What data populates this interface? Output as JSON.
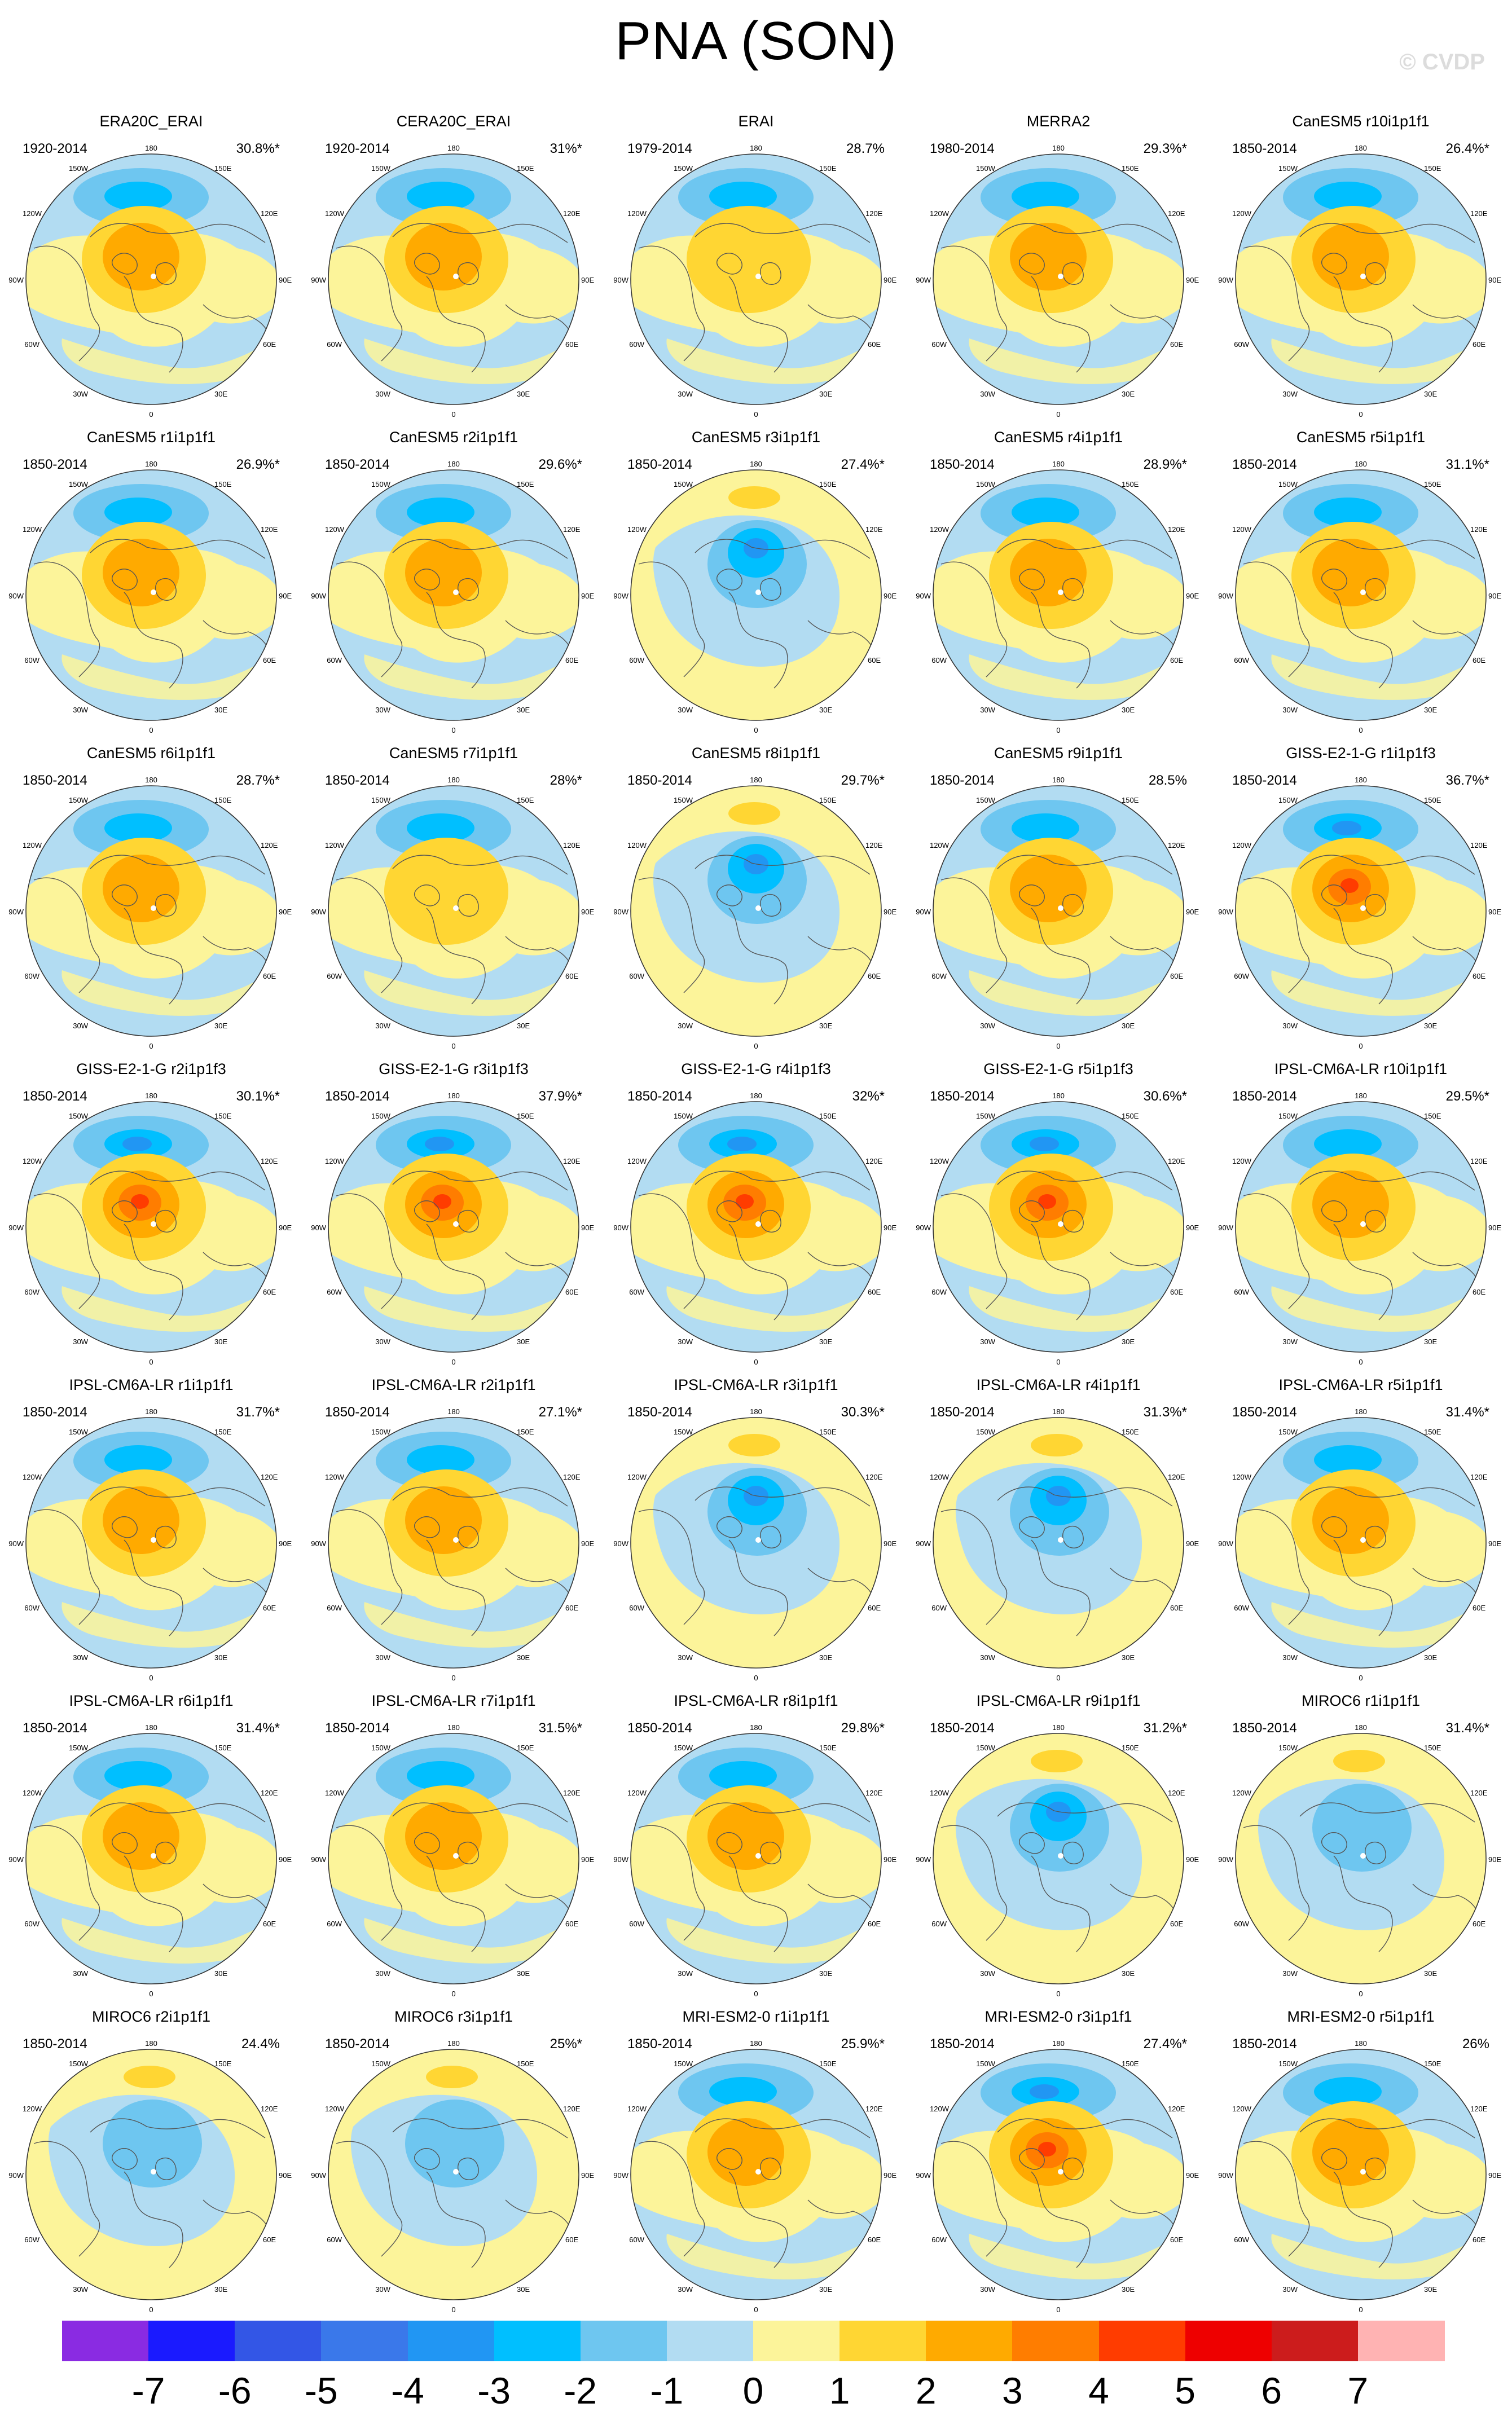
{
  "title": "PNA (SON)",
  "watermark": "© CVDP",
  "map_labels": {
    "lon_180": "180",
    "lon_150w": "150W",
    "lon_150e": "150E",
    "lon_120w": "120W",
    "lon_120e": "120E",
    "lon_90w": "90W",
    "lon_90e": "90E",
    "lon_60w": "60W",
    "lon_60e": "60E",
    "lon_30w": "30W",
    "lon_30e": "30E",
    "lon_0": "0"
  },
  "colorbar": {
    "colors": [
      "#8a2be2",
      "#1a1aff",
      "#3356e6",
      "#3a78ea",
      "#2196f3",
      "#00bfff",
      "#6ec6f0",
      "#b2dcf2",
      "#fcf49a",
      "#ffd633",
      "#ffaa00",
      "#ff7d00",
      "#ff3c00",
      "#ee0000",
      "#cc1c1c",
      "#ffb3b3"
    ],
    "labels": [
      "-7",
      "-6",
      "-5",
      "-4",
      "-3",
      "-2",
      "-1",
      "0",
      "1",
      "2",
      "3",
      "4",
      "5",
      "6",
      "7"
    ]
  },
  "panels": [
    {
      "title": "ERA20C_ERAI",
      "years": "1920-2014",
      "pct": "30.8%*",
      "pattern": "pos",
      "strength": 2
    },
    {
      "title": "CERA20C_ERAI",
      "years": "1920-2014",
      "pct": "31%*",
      "pattern": "pos",
      "strength": 2
    },
    {
      "title": "ERAI",
      "years": "1979-2014",
      "pct": "28.7%",
      "pattern": "pos",
      "strength": 1
    },
    {
      "title": "MERRA2",
      "years": "1980-2014",
      "pct": "29.3%*",
      "pattern": "pos",
      "strength": 2
    },
    {
      "title": "CanESM5 r10i1p1f1",
      "years": "1850-2014",
      "pct": "26.4%*",
      "pattern": "pos",
      "strength": 2
    },
    {
      "title": "CanESM5 r1i1p1f1",
      "years": "1850-2014",
      "pct": "26.9%*",
      "pattern": "pos",
      "strength": 2
    },
    {
      "title": "CanESM5 r2i1p1f1",
      "years": "1850-2014",
      "pct": "29.6%*",
      "pattern": "pos",
      "strength": 2
    },
    {
      "title": "CanESM5 r3i1p1f1",
      "years": "1850-2014",
      "pct": "27.4%*",
      "pattern": "neg",
      "strength": 2
    },
    {
      "title": "CanESM5 r4i1p1f1",
      "years": "1850-2014",
      "pct": "28.9%*",
      "pattern": "pos",
      "strength": 2
    },
    {
      "title": "CanESM5 r5i1p1f1",
      "years": "1850-2014",
      "pct": "31.1%*",
      "pattern": "pos",
      "strength": 2
    },
    {
      "title": "CanESM5 r6i1p1f1",
      "years": "1850-2014",
      "pct": "28.7%*",
      "pattern": "pos",
      "strength": 2
    },
    {
      "title": "CanESM5 r7i1p1f1",
      "years": "1850-2014",
      "pct": "28%*",
      "pattern": "pos",
      "strength": 1
    },
    {
      "title": "CanESM5 r8i1p1f1",
      "years": "1850-2014",
      "pct": "29.7%*",
      "pattern": "neg",
      "strength": 2
    },
    {
      "title": "CanESM5 r9i1p1f1",
      "years": "1850-2014",
      "pct": "28.5%",
      "pattern": "pos",
      "strength": 2
    },
    {
      "title": "GISS-E2-1-G r1i1p1f3",
      "years": "1850-2014",
      "pct": "36.7%*",
      "pattern": "pos",
      "strength": 3
    },
    {
      "title": "GISS-E2-1-G r2i1p1f3",
      "years": "1850-2014",
      "pct": "30.1%*",
      "pattern": "pos",
      "strength": 3
    },
    {
      "title": "GISS-E2-1-G r3i1p1f3",
      "years": "1850-2014",
      "pct": "37.9%*",
      "pattern": "pos",
      "strength": 3
    },
    {
      "title": "GISS-E2-1-G r4i1p1f3",
      "years": "1850-2014",
      "pct": "32%*",
      "pattern": "pos",
      "strength": 3
    },
    {
      "title": "GISS-E2-1-G r5i1p1f3",
      "years": "1850-2014",
      "pct": "30.6%*",
      "pattern": "pos",
      "strength": 3
    },
    {
      "title": "IPSL-CM6A-LR r10i1p1f1",
      "years": "1850-2014",
      "pct": "29.5%*",
      "pattern": "pos",
      "strength": 2
    },
    {
      "title": "IPSL-CM6A-LR r1i1p1f1",
      "years": "1850-2014",
      "pct": "31.7%*",
      "pattern": "pos",
      "strength": 2
    },
    {
      "title": "IPSL-CM6A-LR r2i1p1f1",
      "years": "1850-2014",
      "pct": "27.1%*",
      "pattern": "pos",
      "strength": 2
    },
    {
      "title": "IPSL-CM6A-LR r3i1p1f1",
      "years": "1850-2014",
      "pct": "30.3%*",
      "pattern": "neg",
      "strength": 2
    },
    {
      "title": "IPSL-CM6A-LR r4i1p1f1",
      "years": "1850-2014",
      "pct": "31.3%*",
      "pattern": "neg",
      "strength": 2
    },
    {
      "title": "IPSL-CM6A-LR r5i1p1f1",
      "years": "1850-2014",
      "pct": "31.4%*",
      "pattern": "pos",
      "strength": 2
    },
    {
      "title": "IPSL-CM6A-LR r6i1p1f1",
      "years": "1850-2014",
      "pct": "31.4%*",
      "pattern": "pos",
      "strength": 2
    },
    {
      "title": "IPSL-CM6A-LR r7i1p1f1",
      "years": "1850-2014",
      "pct": "31.5%*",
      "pattern": "pos",
      "strength": 2
    },
    {
      "title": "IPSL-CM6A-LR r8i1p1f1",
      "years": "1850-2014",
      "pct": "29.8%*",
      "pattern": "pos",
      "strength": 2
    },
    {
      "title": "IPSL-CM6A-LR r9i1p1f1",
      "years": "1850-2014",
      "pct": "31.2%*",
      "pattern": "neg",
      "strength": 2
    },
    {
      "title": "MIROC6 r1i1p1f1",
      "years": "1850-2014",
      "pct": "31.4%*",
      "pattern": "neg",
      "strength": 1
    },
    {
      "title": "MIROC6 r2i1p1f1",
      "years": "1850-2014",
      "pct": "24.4%",
      "pattern": "neg",
      "strength": 1
    },
    {
      "title": "MIROC6 r3i1p1f1",
      "years": "1850-2014",
      "pct": "25%*",
      "pattern": "neg",
      "strength": 1
    },
    {
      "title": "MRI-ESM2-0 r1i1p1f1",
      "years": "1850-2014",
      "pct": "25.9%*",
      "pattern": "pos",
      "strength": 2
    },
    {
      "title": "MRI-ESM2-0 r3i1p1f1",
      "years": "1850-2014",
      "pct": "27.4%*",
      "pattern": "pos",
      "strength": 3
    },
    {
      "title": "MRI-ESM2-0 r5i1p1f1",
      "years": "1850-2014",
      "pct": "26%",
      "pattern": "pos",
      "strength": 2
    }
  ]
}
